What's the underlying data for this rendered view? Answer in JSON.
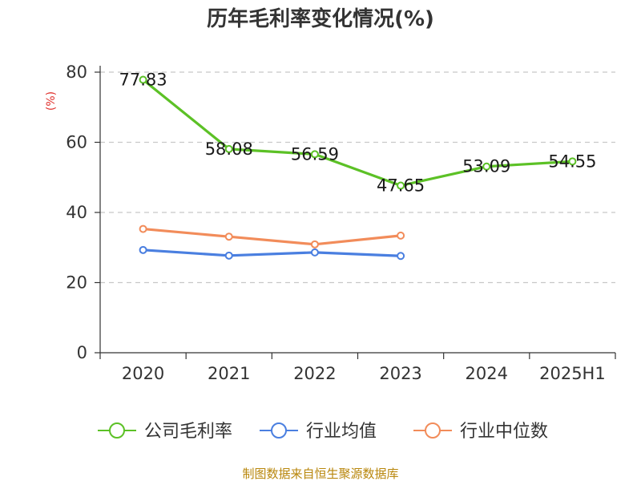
{
  "chart_data": {
    "type": "line",
    "title": "历年毛利率变化情况(%)",
    "ylabel": "(%)",
    "xlabel": "",
    "categories": [
      "2020",
      "2021",
      "2022",
      "2023",
      "2024",
      "2025H1"
    ],
    "ylim": [
      0,
      80
    ],
    "yticks": [
      0,
      20,
      40,
      60,
      80
    ],
    "grid": true,
    "legend_position": "bottom",
    "series": [
      {
        "name": "公司毛利率",
        "color": "#5cc126",
        "values": [
          77.83,
          58.08,
          56.59,
          47.65,
          53.09,
          54.55
        ],
        "labels": [
          "77.83",
          "58.08",
          "56.59",
          "47.65",
          "53.09",
          "54.55"
        ]
      },
      {
        "name": "行业均值",
        "color": "#4a7fe0",
        "values": [
          29.3,
          27.7,
          28.6,
          27.6,
          null,
          null
        ]
      },
      {
        "name": "行业中位数",
        "color": "#f28c5a",
        "values": [
          35.3,
          33.1,
          30.9,
          33.4,
          null,
          null
        ]
      }
    ]
  },
  "source": "制图数据来自恒生聚源数据库"
}
